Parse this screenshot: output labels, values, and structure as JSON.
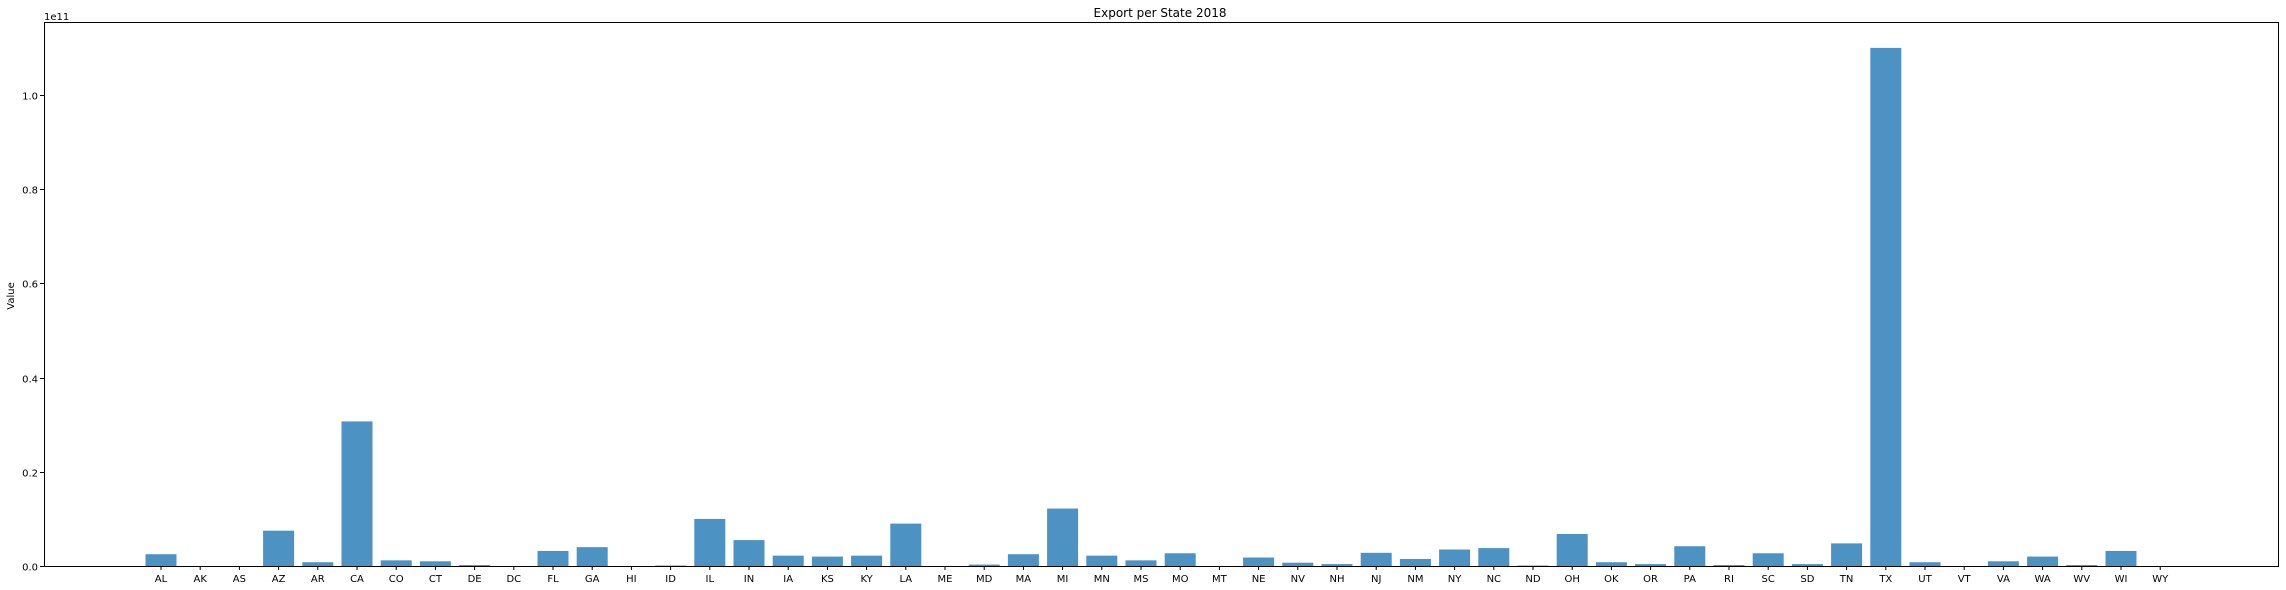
{
  "chart_data": {
    "type": "bar",
    "title": "Export per State 2018",
    "xlabel": "",
    "ylabel": "Value",
    "offset_label": "1e11",
    "ylim": [
      0,
      1.155
    ],
    "yticks": [
      0.0,
      0.2,
      0.4,
      0.6,
      0.8,
      1.0
    ],
    "ytick_labels": [
      "0.0",
      "0.2",
      "0.4",
      "0.6",
      "0.8",
      "1.0"
    ],
    "grid": false,
    "bar_color": "#4c92c3",
    "categories": [
      "AL",
      "AK",
      "AS",
      "AZ",
      "AR",
      "CA",
      "CO",
      "CT",
      "DE",
      "DC",
      "FL",
      "GA",
      "HI",
      "ID",
      "IL",
      "IN",
      "IA",
      "KS",
      "KY",
      "LA",
      "ME",
      "MD",
      "MA",
      "MI",
      "MN",
      "MS",
      "MO",
      "MT",
      "NE",
      "NV",
      "NH",
      "NJ",
      "NM",
      "NY",
      "NC",
      "ND",
      "OH",
      "OK",
      "OR",
      "PA",
      "RI",
      "SC",
      "SD",
      "TN",
      "TX",
      "UT",
      "VT",
      "VA",
      "WA",
      "WV",
      "WI",
      "WY"
    ],
    "values": [
      0.025,
      0.0,
      0.0,
      0.075,
      0.008,
      0.307,
      0.012,
      0.01,
      0.002,
      0.0,
      0.032,
      0.04,
      0.0,
      0.001,
      0.1,
      0.055,
      0.022,
      0.02,
      0.022,
      0.09,
      0.0,
      0.003,
      0.025,
      0.122,
      0.022,
      0.012,
      0.027,
      0.0,
      0.018,
      0.007,
      0.004,
      0.028,
      0.015,
      0.035,
      0.038,
      0.001,
      0.068,
      0.008,
      0.004,
      0.042,
      0.002,
      0.027,
      0.004,
      0.048,
      1.1,
      0.008,
      0.0,
      0.01,
      0.02,
      0.002,
      0.032,
      0.0
    ]
  }
}
